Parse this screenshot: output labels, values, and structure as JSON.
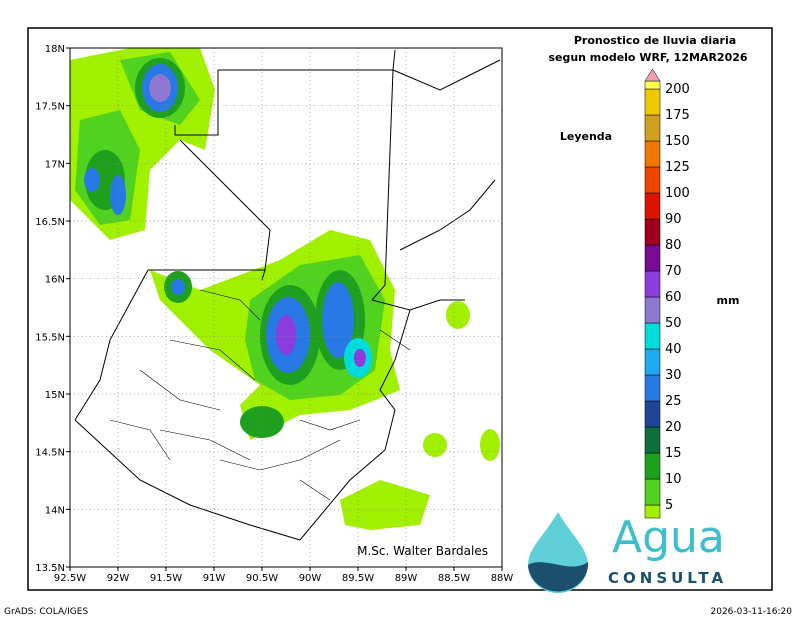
{
  "header": {
    "title": "Pronostico de lluvia diaria",
    "subtitle": "segun modelo WRF,  12MAR2026"
  },
  "map": {
    "lat_labels": [
      "18N",
      "17.5N",
      "17N",
      "16.5N",
      "16N",
      "15.5N",
      "15N",
      "14.5N",
      "14N",
      "13.5N"
    ],
    "lon_labels": [
      "92.5W",
      "92W",
      "91.5W",
      "91W",
      "90.5W",
      "90W",
      "89.5W",
      "89W",
      "88.5W",
      "88W"
    ],
    "credit": "M.Sc. Walter Bardales"
  },
  "legend": {
    "title": "Leyenda",
    "unit": "mm",
    "base_color": "#a0f000",
    "top_color": "#f0a0b4",
    "levels": [
      {
        "value": 5,
        "color": "#50d21e"
      },
      {
        "value": 10,
        "color": "#1ea01e"
      },
      {
        "value": 15,
        "color": "#0f6e3c"
      },
      {
        "value": 20,
        "color": "#1e4696"
      },
      {
        "value": 25,
        "color": "#2878e6"
      },
      {
        "value": 30,
        "color": "#1eaaf0"
      },
      {
        "value": 40,
        "color": "#00dcdc"
      },
      {
        "value": 50,
        "color": "#8c78d2"
      },
      {
        "value": 60,
        "color": "#8c3cdc"
      },
      {
        "value": 70,
        "color": "#780a96"
      },
      {
        "value": 80,
        "color": "#a0001e"
      },
      {
        "value": 90,
        "color": "#dc1400"
      },
      {
        "value": 100,
        "color": "#f04600"
      },
      {
        "value": 125,
        "color": "#f07800"
      },
      {
        "value": 150,
        "color": "#d2a01e"
      },
      {
        "value": 175,
        "color": "#f0c800"
      },
      {
        "value": 200,
        "color": "#ffff50"
      }
    ]
  },
  "logo": {
    "word": "Agua",
    "subword": "CONSULTA"
  },
  "footer": {
    "left": "GrADS: COLA/IGES",
    "right": "2026-03-11-16:20"
  }
}
